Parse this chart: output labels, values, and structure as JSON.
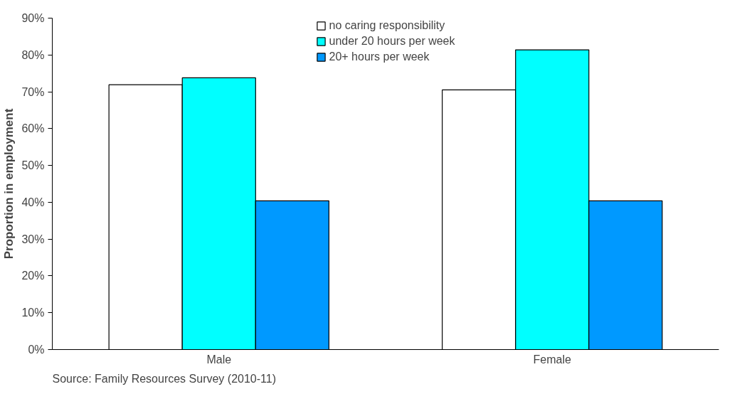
{
  "chart_data": {
    "type": "bar",
    "ylabel": "Proportion in employment",
    "categories": [
      "Male",
      "Female"
    ],
    "series": [
      {
        "name": "no caring responsibility",
        "color": "#ffffff",
        "values": [
          71.9,
          70.5
        ]
      },
      {
        "name": "under 20 hours per week",
        "color": "#00ffff",
        "values": [
          73.8,
          81.4
        ]
      },
      {
        "name": "20+ hours per week",
        "color": "#0099ff",
        "values": [
          40.4,
          40.4
        ]
      }
    ],
    "ylim": [
      0,
      90
    ],
    "yticks": [
      {
        "value": 0,
        "label": "0%"
      },
      {
        "value": 10,
        "label": "10%"
      },
      {
        "value": 20,
        "label": "20%"
      },
      {
        "value": 30,
        "label": "30%"
      },
      {
        "value": 40,
        "label": "40%"
      },
      {
        "value": 50,
        "label": "50%"
      },
      {
        "value": 60,
        "label": "60%"
      },
      {
        "value": 70,
        "label": "70%"
      },
      {
        "value": 80,
        "label": "80%"
      },
      {
        "value": 90,
        "label": "90%"
      }
    ],
    "grid": false,
    "legend": "top",
    "annotations": [
      "Source:  Family Resources Survey (2010-11)"
    ]
  }
}
